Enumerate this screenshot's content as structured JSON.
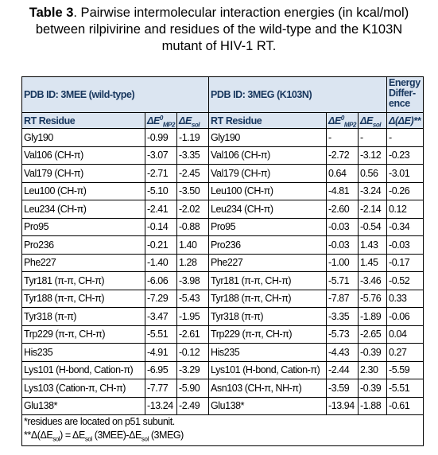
{
  "title": {
    "label": "Table 3",
    "text": ". Pairwise intermolecular interaction energies (in kcal/mol) between rilpivirine and residues of the wild-type and the K103N mutant of HIV-1 RT."
  },
  "table": {
    "group_headers": [
      "PDB ID: 3MEE (wild-type)",
      "PDB ID: 3MEG (K103N)",
      [
        "Energy",
        "Differ-",
        "ence"
      ]
    ],
    "columns": [
      [
        {
          "t": "RT Residue"
        }
      ],
      [
        {
          "t": "ΔE"
        },
        {
          "sup": "0"
        },
        {
          "sub": "MP2"
        }
      ],
      [
        {
          "t": "ΔE"
        },
        {
          "sub": "sol"
        }
      ],
      [
        {
          "t": "RT Residue"
        }
      ],
      [
        {
          "t": "ΔE"
        },
        {
          "sup": "0"
        },
        {
          "sub": "MP2"
        }
      ],
      [
        {
          "t": "ΔE"
        },
        {
          "sub": "sol"
        }
      ],
      [
        {
          "t": "Δ(ΔE)**"
        }
      ]
    ],
    "rows": [
      [
        "Gly190",
        "-0.99",
        "-1.19",
        "Gly190",
        "-",
        "-",
        "-"
      ],
      [
        "Val106 (CH-π)",
        "-3.07",
        "-3.35",
        "Val106 (CH-π)",
        "-2.72",
        "-3.12",
        "-0.23"
      ],
      [
        "Val179 (CH-π)",
        "-2.71",
        "-2.45",
        "Val179 (CH-π)",
        "0.64",
        "0.56",
        "-3.01"
      ],
      [
        "Leu100 (CH-π)",
        "-5.10",
        "-3.50",
        "Leu100 (CH-π)",
        "-4.81",
        "-3.24",
        "-0.26"
      ],
      [
        "Leu234 (CH-π)",
        "-2.41",
        "-2.02",
        "Leu234 (CH-π)",
        "-2.60",
        "-2.14",
        "0.12"
      ],
      [
        "Pro95",
        "-0.14",
        "-0.88",
        "Pro95",
        "-0.03",
        "-0.54",
        "-0.34"
      ],
      [
        "Pro236",
        "-0.21",
        "1.40",
        "Pro236",
        "-0.03",
        "1.43",
        "-0.03"
      ],
      [
        "Phe227",
        "-1.40",
        "1.28",
        "Phe227",
        "-1.00",
        "1.45",
        "-0.17"
      ],
      [
        "Tyr181 (π-π, CH-π)",
        "-6.06",
        "-3.98",
        "Tyr181 (π-π, CH-π)",
        "-5.71",
        "-3.46",
        "-0.52"
      ],
      [
        "Tyr188 (π-π, CH-π)",
        "-7.29",
        "-5.43",
        "Tyr188 (π-π, CH-π)",
        "-7.87",
        "-5.76",
        "0.33"
      ],
      [
        "Tyr318 (π-π)",
        "-3.47",
        "-1.95",
        "Tyr318 (π-π)",
        "-3.35",
        "-1.89",
        "-0.06"
      ],
      [
        "Trp229 (π-π, CH-π)",
        "-5.51",
        "-2.61",
        "Trp229 (π-π, CH-π)",
        "-5.73",
        "-2.65",
        "0.04"
      ],
      [
        "His235",
        "-4.91",
        "-0.12",
        "His235",
        "-4.43",
        "-0.39",
        "0.27"
      ],
      [
        "Lys101 (H-bond, Cation-π)",
        "-6.95",
        "-3.29",
        "Lys101 (H-bond, Cation-π)",
        "-2.44",
        "2.30",
        "-5.59"
      ],
      [
        "Lys103 (Cation-π, CH-π)",
        "-7.77",
        "-5.90",
        "Asn103 (CH-π, NH-π)",
        "-3.59",
        "-0.39",
        "-5.51"
      ],
      [
        "Glu138*",
        "-13.24",
        "-2.49",
        "Glu138*",
        "-13.94",
        "-1.88",
        "-0.61"
      ]
    ],
    "footnotes": [
      [
        {
          "t": "*residues are located on p51 subunit."
        }
      ],
      [
        {
          "t": "**Δ(ΔE"
        },
        {
          "sub": "sol"
        },
        {
          "t": ") = ΔE"
        },
        {
          "sub": "sol"
        },
        {
          "t": " (3MEE)-ΔE"
        },
        {
          "sub": "sol"
        },
        {
          "t": " (3MEG)"
        }
      ]
    ]
  }
}
